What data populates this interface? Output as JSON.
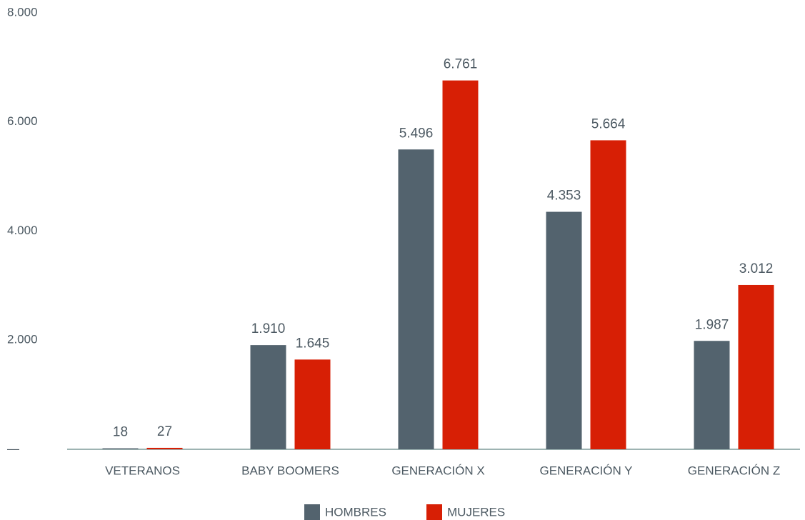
{
  "chart_data": {
    "type": "bar",
    "categories": [
      "VETERANOS",
      "BABY BOOMERS",
      "GENERACIÓN X",
      "GENERACIÓN Y",
      "GENERACIÓN Z"
    ],
    "series": [
      {
        "name": "HOMBRES",
        "color": "#53636e",
        "values": [
          18,
          1910,
          5496,
          4353,
          1987
        ],
        "value_labels": [
          "18",
          "1.910",
          "5.496",
          "4.353",
          "1.987"
        ]
      },
      {
        "name": "MUJERES",
        "color": "#d71f05",
        "values": [
          27,
          1645,
          6761,
          5664,
          3012
        ],
        "value_labels": [
          "27",
          "1.645",
          "6.761",
          "5.664",
          "3.012"
        ]
      }
    ],
    "ylim": [
      0,
      8000
    ],
    "yticks": [
      {
        "value": 0,
        "label": "—"
      },
      {
        "value": 2000,
        "label": "2.000"
      },
      {
        "value": 4000,
        "label": "4.000"
      },
      {
        "value": 6000,
        "label": "6.000"
      },
      {
        "value": 8000,
        "label": "8.000"
      }
    ],
    "grid": false,
    "legend": "bottom"
  }
}
